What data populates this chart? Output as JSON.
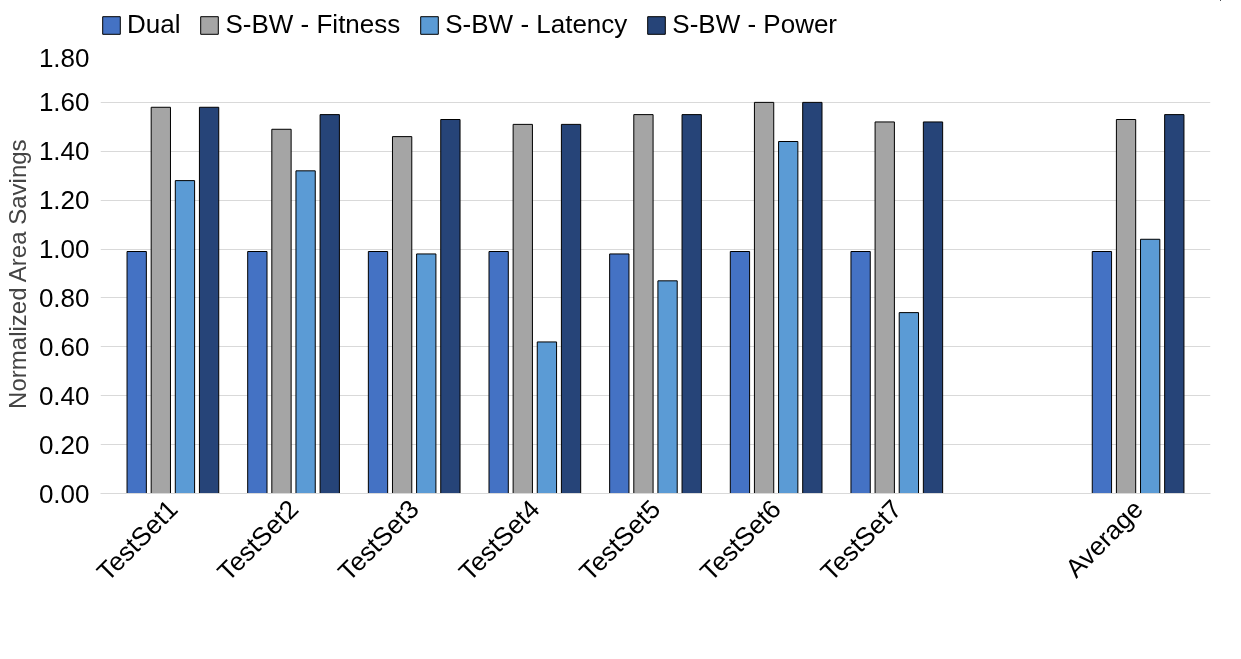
{
  "chart_data": {
    "type": "bar",
    "ylabel": "Normalized Area Savings",
    "categories": [
      "TestSet1",
      "TestSet2",
      "TestSet3",
      "TestSet4",
      "TestSet5",
      "TestSet6",
      "TestSet7",
      null,
      "Average"
    ],
    "series": [
      {
        "name": "Dual",
        "color": "#4472c4",
        "values": [
          0.99,
          0.99,
          0.99,
          0.99,
          0.98,
          0.99,
          0.99,
          null,
          0.99
        ]
      },
      {
        "name": "S-BW - Fitness",
        "color": "#a5a5a5",
        "values": [
          1.58,
          1.49,
          1.46,
          1.51,
          1.55,
          1.6,
          1.52,
          null,
          1.53
        ]
      },
      {
        "name": "S-BW - Latency",
        "color": "#5b9bd5",
        "values": [
          1.28,
          1.32,
          0.98,
          0.62,
          0.87,
          1.44,
          0.74,
          null,
          1.04
        ]
      },
      {
        "name": "S-BW - Power",
        "color": "#264478",
        "values": [
          1.58,
          1.55,
          1.53,
          1.51,
          1.55,
          1.6,
          1.52,
          null,
          1.55
        ]
      }
    ],
    "ylim": [
      0,
      1.8
    ],
    "yticks": [
      {
        "value": 0,
        "label": "0.00"
      },
      {
        "value": 0.2,
        "label": "0.20"
      },
      {
        "value": 0.4,
        "label": "0.40"
      },
      {
        "value": 0.6,
        "label": "0.60"
      },
      {
        "value": 0.8,
        "label": "0.80"
      },
      {
        "value": 1.0,
        "label": "1.00"
      },
      {
        "value": 1.2,
        "label": "1.20"
      },
      {
        "value": 1.4,
        "label": "1.40"
      },
      {
        "value": 1.6,
        "label": "1.60"
      },
      {
        "value": 1.8,
        "label": "1.80"
      }
    ],
    "grid": "y",
    "legend": "top"
  }
}
